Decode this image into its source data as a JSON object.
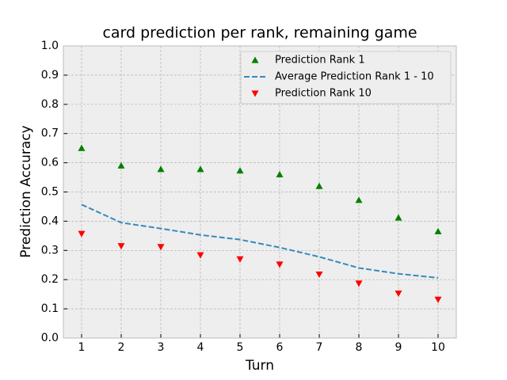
{
  "chart_data": {
    "type": "line",
    "title": "card prediction per rank, remaining game",
    "xlabel": "Turn",
    "ylabel": "Prediction Accuracy",
    "x": [
      1,
      2,
      3,
      4,
      5,
      6,
      7,
      8,
      9,
      10
    ],
    "series": [
      {
        "name": "Prediction Rank 1",
        "color": "#008000",
        "marker": "triangle-up",
        "line": "none",
        "values": [
          0.65,
          0.59,
          0.578,
          0.578,
          0.573,
          0.56,
          0.52,
          0.472,
          0.412,
          0.365
        ]
      },
      {
        "name": "Average Prediction Rank 1 - 10",
        "color": "#348ABD",
        "marker": "none",
        "line": "dashed",
        "values": [
          0.457,
          0.395,
          0.375,
          0.353,
          0.337,
          0.31,
          0.278,
          0.24,
          0.22,
          0.206
        ]
      },
      {
        "name": "Prediction Rank 10",
        "color": "#ff0000",
        "marker": "triangle-down",
        "line": "none",
        "values": [
          0.357,
          0.315,
          0.312,
          0.284,
          0.27,
          0.252,
          0.218,
          0.187,
          0.153,
          0.132
        ]
      }
    ],
    "xlim": [
      0.54,
      10.46
    ],
    "xticks": [
      1,
      2,
      3,
      4,
      5,
      6,
      7,
      8,
      9,
      10
    ],
    "ylim": [
      0,
      1
    ],
    "yticks": [
      {
        "value": 0,
        "label": "0.0"
      },
      0.1,
      0.2,
      0.3,
      0.4,
      0.5,
      0.6,
      0.7,
      0.8,
      0.9,
      {
        "value": 1,
        "label": "1.0"
      }
    ],
    "grid": true,
    "legend": "upper right"
  }
}
